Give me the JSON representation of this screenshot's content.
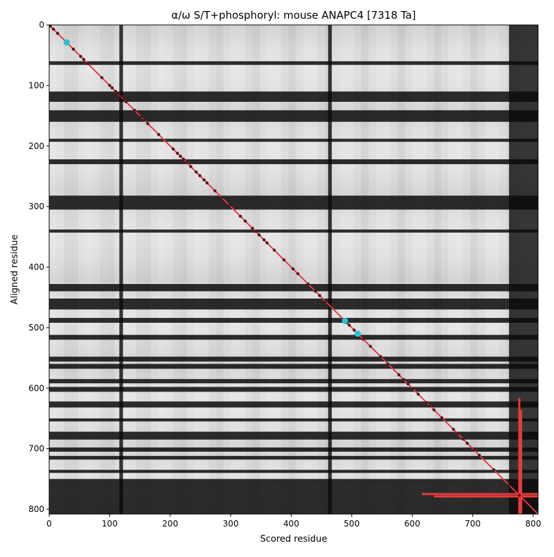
{
  "chart_data": {
    "type": "heatmap",
    "title": "α/ω S/T+phosphoryl: mouse ANAPC4 [7318 Ta]",
    "xlabel": "Scored residue",
    "ylabel": "Aligned residue",
    "xlim": [
      0,
      808
    ],
    "ylim": [
      808,
      0
    ],
    "x_ticks": [
      0,
      100,
      200,
      300,
      400,
      500,
      600,
      700,
      800
    ],
    "y_ticks": [
      0,
      100,
      200,
      300,
      400,
      500,
      600,
      700,
      800
    ],
    "grid": false,
    "legend": "none",
    "colormap": "grayscale",
    "colors": {
      "diagonal": "#e83a3a",
      "highlight_points": "#22c4d4",
      "contact_points": "#5a1414",
      "background_dark": "#0a0a0a",
      "background_light": "#f2f2f2"
    },
    "dark_row_bands": [
      [
        60,
        66
      ],
      [
        110,
        127
      ],
      [
        141,
        160
      ],
      [
        188,
        193
      ],
      [
        222,
        230
      ],
      [
        282,
        305
      ],
      [
        338,
        343
      ],
      [
        428,
        440
      ],
      [
        452,
        470
      ],
      [
        484,
        492
      ],
      [
        512,
        520
      ],
      [
        548,
        556
      ],
      [
        560,
        568
      ],
      [
        585,
        592
      ],
      [
        598,
        606
      ],
      [
        622,
        632
      ],
      [
        650,
        655
      ],
      [
        672,
        685
      ],
      [
        698,
        705
      ],
      [
        712,
        718
      ],
      [
        735,
        740
      ],
      [
        750,
        808
      ]
    ],
    "dark_col_bands": [
      [
        116,
        122
      ],
      [
        461,
        467
      ],
      [
        760,
        808
      ]
    ],
    "diagonal_line": {
      "from": [
        0,
        0
      ],
      "to": [
        808,
        808
      ]
    },
    "highlight_points": [
      {
        "x": 29,
        "y": 29
      },
      {
        "x": 489,
        "y": 489
      },
      {
        "x": 510,
        "y": 510
      }
    ],
    "contact_points": [
      2,
      7,
      14,
      40,
      52,
      57,
      64,
      87,
      100,
      104,
      110,
      114,
      118,
      123,
      127,
      141,
      152,
      157,
      163,
      181,
      205,
      212,
      217,
      222,
      227,
      234,
      243,
      249,
      256,
      261,
      274,
      285,
      298,
      316,
      324,
      336,
      341,
      347,
      355,
      360,
      372,
      388,
      403,
      411,
      428,
      440,
      447,
      457,
      492,
      496,
      504,
      519,
      531,
      548,
      560,
      578,
      586,
      593,
      601,
      610,
      624,
      629,
      636,
      649,
      668,
      675,
      684,
      691,
      702,
      711,
      735,
      760,
      777
    ],
    "red_segments": [
      {
        "axis": "vertical",
        "x": 777,
        "y_from": 616,
        "y_to": 808
      },
      {
        "axis": "vertical",
        "x": 780,
        "y_from": 636,
        "y_to": 808
      },
      {
        "axis": "horizontal",
        "y": 775,
        "x_from": 616,
        "x_to": 808
      },
      {
        "axis": "horizontal",
        "y": 779,
        "x_from": 636,
        "x_to": 808
      }
    ]
  }
}
